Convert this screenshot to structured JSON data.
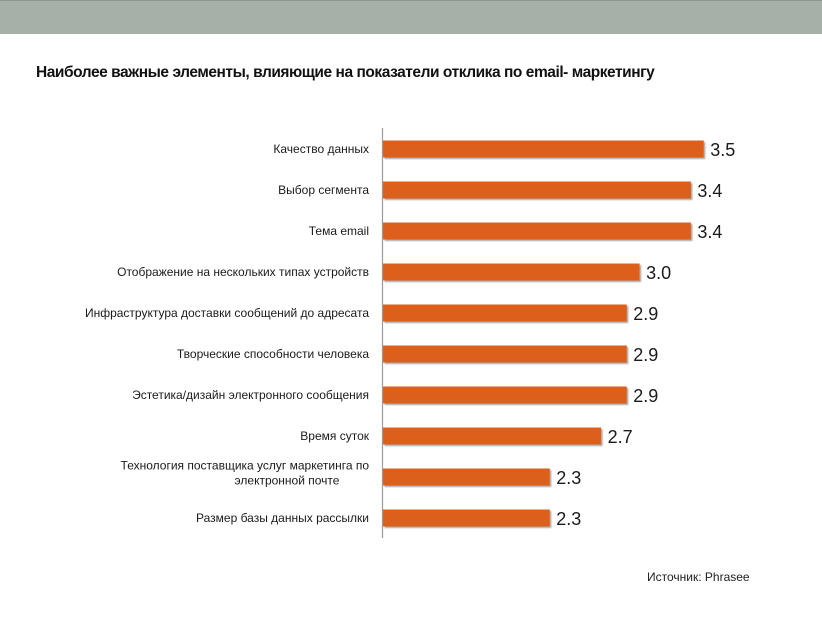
{
  "header": {
    "band_color": "#a6b0a9"
  },
  "chart_data": {
    "type": "bar",
    "orientation": "horizontal",
    "title": "Наиболее важные элементы, влияющие на показатели отклика по email- маркетингу",
    "xlabel": "",
    "ylabel": "",
    "xlim": [
      1,
      3.5
    ],
    "grid": false,
    "legend": "none",
    "bar_color": "#dd5f1f",
    "categories": [
      [
        "Качество данных"
      ],
      [
        "Выбор сегмента"
      ],
      [
        "Тема email"
      ],
      [
        "Отображение на нескольких типах устройств"
      ],
      [
        "Инфраструктура доставки сообщений до адресата"
      ],
      [
        "Творческие способности человека"
      ],
      [
        "Эстетика/дизайн электронного сообщения"
      ],
      [
        "Время суток"
      ],
      [
        "Технология поставщика услуг маркетинга по",
        "электронной почте"
      ],
      [
        "Размер базы данных рассылки"
      ]
    ],
    "values": [
      3.5,
      3.4,
      3.4,
      3.0,
      2.9,
      2.9,
      2.9,
      2.7,
      2.3,
      2.3
    ],
    "value_labels": [
      "3.5",
      "3.4",
      "3.4",
      "3.0",
      "2.9",
      "2.9",
      "2.9",
      "2.7",
      "2.3",
      "2.3"
    ]
  },
  "footer": {
    "source": "Источник: Phrasee"
  }
}
